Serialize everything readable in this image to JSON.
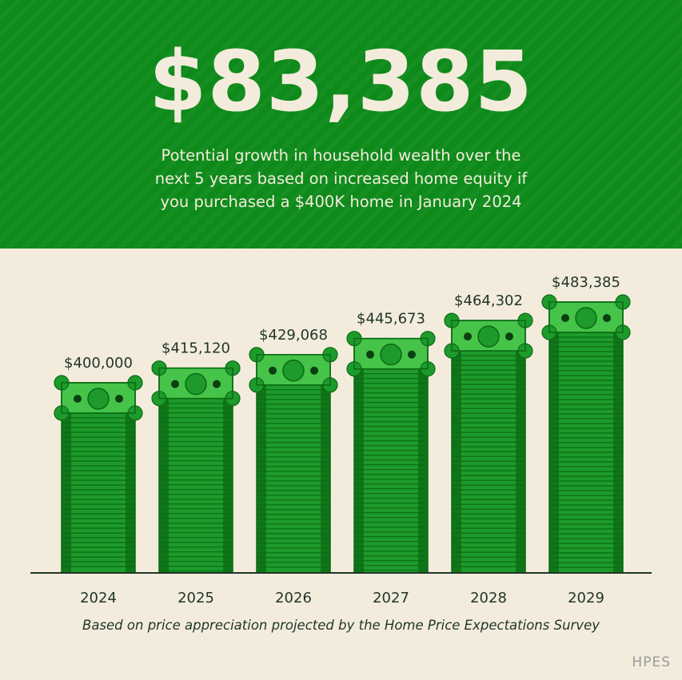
{
  "header": {
    "headline": "$83,385",
    "subtext_lines": [
      "Potential growth in household wealth over the",
      "next 5 years based on increased home equity if",
      "you purchased a $400K home in January 2024"
    ]
  },
  "caption": "Based on price appreciation projected by the Home Price Expectations Survey",
  "source": "HPES",
  "colors": {
    "header_bg": "#0d8a1a",
    "page_bg": "#f3ecdc",
    "bill_light": "#46c44a",
    "bill_dark": "#0b6a14",
    "bill_body": "#1d9a2b",
    "text_dark": "#1f3528"
  },
  "chart_data": {
    "type": "bar",
    "categories": [
      "2024",
      "2025",
      "2026",
      "2027",
      "2028",
      "2029"
    ],
    "values": [
      400000,
      415120,
      429068,
      445673,
      464302,
      483385
    ],
    "value_labels": [
      "$400,000",
      "$415,120",
      "$429,068",
      "$445,673",
      "$464,302",
      "$483,385"
    ],
    "xlabel": "",
    "ylabel": "",
    "grid": false,
    "legend": "none"
  }
}
